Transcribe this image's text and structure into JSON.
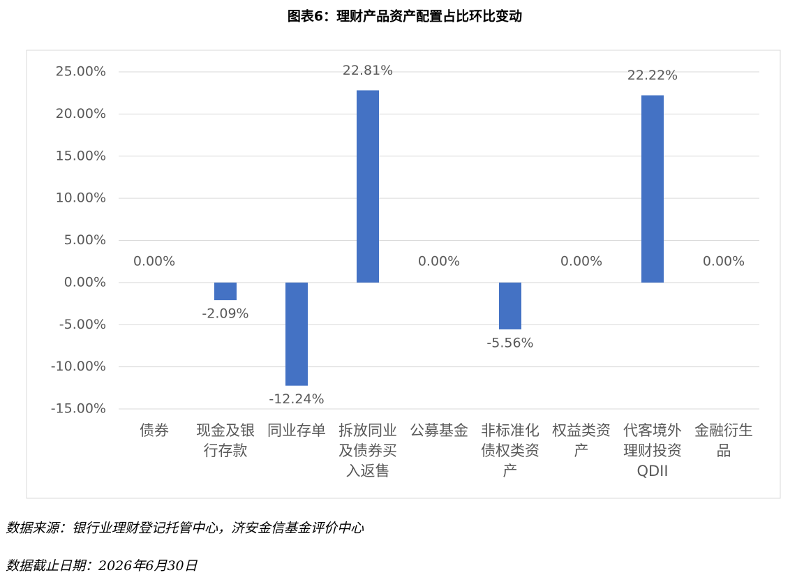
{
  "chart_data": {
    "type": "bar",
    "title": "图表6：理财产品资产配置占比环比变动",
    "categories": [
      "债券",
      "现金及银行存款",
      "同业存单",
      "拆放同业及债券买入返售",
      "公募基金",
      "非标准化债权类资产",
      "权益类资产",
      "代客境外理财投资QDII",
      "金融衍生品"
    ],
    "values": [
      0,
      -2.09,
      -12.24,
      22.81,
      0,
      -5.56,
      0,
      22.22,
      0
    ],
    "value_labels": [
      "0.00%",
      "-2.09%",
      "-12.24%",
      "22.81%",
      "0.00%",
      "-5.56%",
      "0.00%",
      "22.22%",
      "0.00%"
    ],
    "color": "#4472c4",
    "ylim": [
      -15,
      25
    ],
    "yticks": [
      {
        "value": -15,
        "label": "-15.00%"
      },
      {
        "value": -10,
        "label": "-10.00%"
      },
      {
        "value": -5,
        "label": "-5.00%"
      },
      {
        "value": 0,
        "label": "0.00%"
      },
      {
        "value": 5,
        "label": "5.00%"
      },
      {
        "value": 10,
        "label": "10.00%"
      },
      {
        "value": 15,
        "label": "15.00%"
      },
      {
        "value": 20,
        "label": "20.00%"
      },
      {
        "value": 25,
        "label": "25.00%"
      }
    ],
    "grid": true
  },
  "notes": {
    "source": "数据来源：银行业理财登记托管中心，济安金信基金评价中心",
    "date": "数据截止日期：2026年6月30日"
  }
}
